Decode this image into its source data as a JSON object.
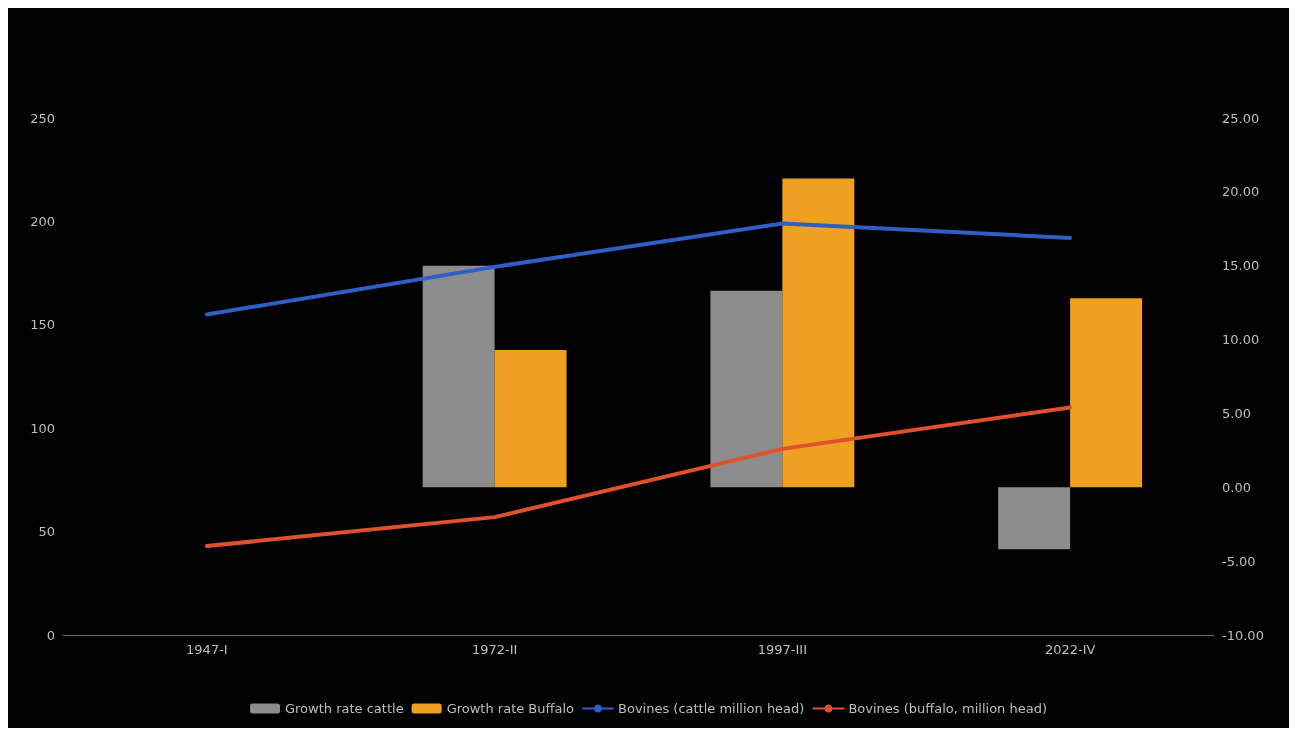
{
  "chart_data": {
    "type": "bar",
    "categories": [
      "1947-I",
      "1972-II",
      "1997-III",
      "2022-IV"
    ],
    "series": [
      {
        "name": "Growth rate cattle",
        "axis": "y2",
        "color": "#8c8c8c",
        "values": [
          null,
          15.0,
          13.3,
          -4.2
        ]
      },
      {
        "name": "Growth rate Buffalo",
        "axis": "y2",
        "color": "#f0a020",
        "values": [
          null,
          9.3,
          20.9,
          12.8
        ]
      },
      {
        "name": "Bovines (cattle million head)",
        "type": "line",
        "color": "#2f5fc4",
        "values": [
          155,
          178,
          199,
          192
        ]
      },
      {
        "name": "Bovines (buffalo, million head)",
        "type": "line",
        "color": "#e0502a",
        "values": [
          43,
          57,
          90,
          110
        ]
      }
    ],
    "ylim": [
      0,
      250
    ],
    "yticks": [
      0,
      50,
      100,
      150,
      200,
      250
    ],
    "y2lim": [
      -10,
      25
    ],
    "y2ticks": [
      {
        "value": -10,
        "label": "-10.00"
      },
      {
        "value": -5,
        "label": "-5.00"
      },
      {
        "value": 0,
        "label": "0.00"
      },
      {
        "value": 5,
        "label": "5.00"
      },
      {
        "value": 10,
        "label": "10.00"
      },
      {
        "value": 15,
        "label": "15.00"
      },
      {
        "value": 20,
        "label": "20.00"
      },
      {
        "value": 25,
        "label": "25.00"
      }
    ],
    "grid": false,
    "legend": "bottom",
    "marker": "none",
    "line_style": "solid"
  }
}
